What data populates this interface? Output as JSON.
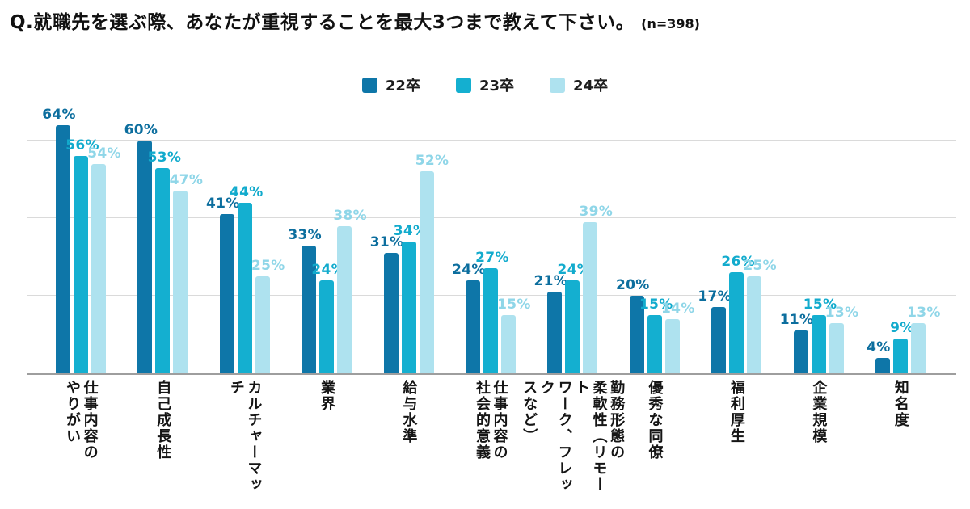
{
  "title": {
    "question": "Q.就職先を選ぶ際、あなたが重視することを最大3つまで教えて下さい。",
    "sample_size": "(n=398)"
  },
  "chart_data": {
    "type": "bar",
    "title": "Q.就職先を選ぶ際、あなたが重視することを最大3つまで教えて下さい。(n=398)",
    "value_suffix": "%",
    "ylim": [
      0,
      70
    ],
    "gridlines_pct": [
      20,
      40,
      60
    ],
    "grid": "horizontal",
    "legend_position": "top-center",
    "axis_color": "#9e9e9e",
    "gridline_color": "#dadada",
    "categories": [
      "仕事内容のやりがい",
      "自己成長性",
      "カルチャーマッチ",
      "業界",
      "給与水準",
      "仕事内容の社会的意義",
      "勤務形態の柔軟性（リモートワーク、フレックスなど）",
      "優秀な同僚",
      "福利厚生",
      "企業規模",
      "知名度"
    ],
    "category_lines": [
      [
        "仕事内容の",
        "やりがい"
      ],
      [
        "自己成長性"
      ],
      [
        "カルチャーマッチ"
      ],
      [
        "業界"
      ],
      [
        "給与水準"
      ],
      [
        "仕事内容の",
        "社会的意義"
      ],
      [
        "勤務形態の",
        "柔軟性（リモート",
        "ワーク、フレック",
        "スなど）"
      ],
      [
        "優秀な同僚"
      ],
      [
        "福利厚生"
      ],
      [
        "企業規模"
      ],
      [
        "知名度"
      ]
    ],
    "series": [
      {
        "name": "22卒",
        "color": "#0E76A8",
        "label_color": "#0C6E9E",
        "values": [
          64,
          60,
          41,
          33,
          31,
          24,
          21,
          20,
          17,
          11,
          4
        ]
      },
      {
        "name": "23卒",
        "color": "#14AFD0",
        "label_color": "#12ABCD",
        "values": [
          56,
          53,
          44,
          24,
          34,
          27,
          24,
          15,
          26,
          15,
          9
        ]
      },
      {
        "name": "24卒",
        "color": "#AEE2EF",
        "label_color": "#8FD6E8",
        "values": [
          54,
          47,
          25,
          38,
          52,
          15,
          39,
          14,
          25,
          13,
          13
        ]
      }
    ]
  }
}
